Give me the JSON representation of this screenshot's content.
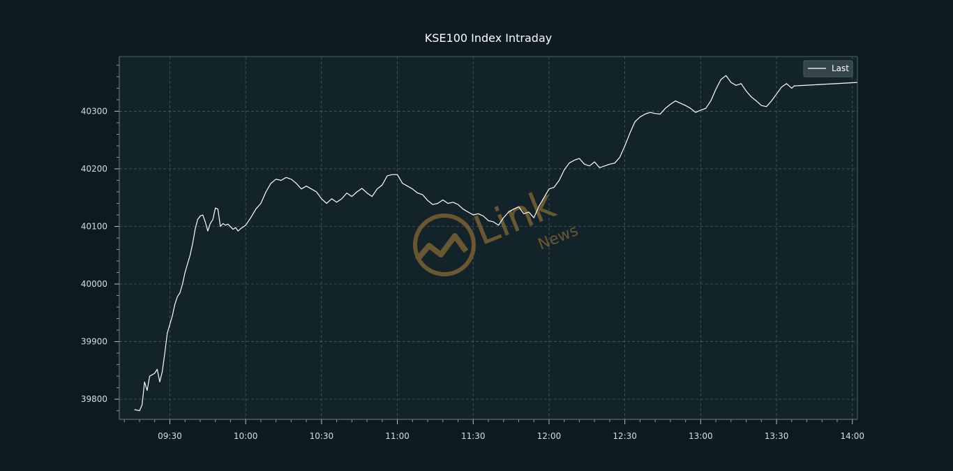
{
  "chart_data": {
    "type": "line",
    "title": "KSE100 Index Intraday",
    "xlabel": "",
    "ylabel": "",
    "x_axis": {
      "type": "time",
      "range": [
        "09:10",
        "14:02"
      ],
      "ticks": [
        "09:30",
        "10:00",
        "10:30",
        "11:00",
        "11:30",
        "12:00",
        "12:30",
        "13:00",
        "13:30",
        "14:00"
      ]
    },
    "y_axis": {
      "range": [
        39765,
        40395
      ],
      "ticks": [
        39800,
        39900,
        40000,
        40100,
        40200,
        40300
      ]
    },
    "grid": true,
    "legend": {
      "position": "top-right",
      "entries": [
        "Last"
      ]
    },
    "colors": {
      "background": "#0c1b21",
      "plot_background": "#12232a",
      "grid": "#4a5e66",
      "line": "#ffffff",
      "watermark": "#7a6130"
    },
    "series": [
      {
        "name": "Last",
        "points": [
          [
            "09:16",
            39782
          ],
          [
            "09:18",
            39780
          ],
          [
            "09:19",
            39790
          ],
          [
            "09:20",
            39830
          ],
          [
            "09:21",
            39815
          ],
          [
            "09:22",
            39840
          ],
          [
            "09:24",
            39845
          ],
          [
            "09:25",
            39852
          ],
          [
            "09:26",
            39830
          ],
          [
            "09:27",
            39848
          ],
          [
            "09:28",
            39880
          ],
          [
            "09:29",
            39915
          ],
          [
            "09:30",
            39930
          ],
          [
            "09:31",
            39945
          ],
          [
            "09:32",
            39965
          ],
          [
            "09:33",
            39978
          ],
          [
            "09:34",
            39985
          ],
          [
            "09:35",
            40000
          ],
          [
            "09:36",
            40020
          ],
          [
            "09:37",
            40035
          ],
          [
            "09:38",
            40050
          ],
          [
            "09:39",
            40070
          ],
          [
            "09:40",
            40095
          ],
          [
            "09:41",
            40112
          ],
          [
            "09:42",
            40118
          ],
          [
            "09:43",
            40120
          ],
          [
            "09:44",
            40108
          ],
          [
            "09:45",
            40092
          ],
          [
            "09:46",
            40105
          ],
          [
            "09:47",
            40112
          ],
          [
            "09:48",
            40132
          ],
          [
            "09:49",
            40130
          ],
          [
            "09:50",
            40100
          ],
          [
            "09:51",
            40105
          ],
          [
            "09:52",
            40102
          ],
          [
            "09:53",
            40104
          ],
          [
            "09:55",
            40095
          ],
          [
            "09:56",
            40098
          ],
          [
            "09:57",
            40092
          ],
          [
            "09:58",
            40096
          ],
          [
            "10:00",
            40102
          ],
          [
            "10:02",
            40115
          ],
          [
            "10:04",
            40130
          ],
          [
            "10:06",
            40140
          ],
          [
            "10:08",
            40160
          ],
          [
            "10:10",
            40175
          ],
          [
            "10:12",
            40182
          ],
          [
            "10:14",
            40180
          ],
          [
            "10:16",
            40185
          ],
          [
            "10:18",
            40182
          ],
          [
            "10:20",
            40175
          ],
          [
            "10:22",
            40165
          ],
          [
            "10:24",
            40170
          ],
          [
            "10:26",
            40165
          ],
          [
            "10:28",
            40160
          ],
          [
            "10:30",
            40148
          ],
          [
            "10:32",
            40140
          ],
          [
            "10:34",
            40148
          ],
          [
            "10:36",
            40142
          ],
          [
            "10:38",
            40148
          ],
          [
            "10:40",
            40158
          ],
          [
            "10:42",
            40152
          ],
          [
            "10:44",
            40160
          ],
          [
            "10:46",
            40166
          ],
          [
            "10:48",
            40158
          ],
          [
            "10:50",
            40152
          ],
          [
            "10:52",
            40165
          ],
          [
            "10:54",
            40172
          ],
          [
            "10:56",
            40188
          ],
          [
            "10:58",
            40190
          ],
          [
            "11:00",
            40190
          ],
          [
            "11:02",
            40175
          ],
          [
            "11:04",
            40170
          ],
          [
            "11:06",
            40165
          ],
          [
            "11:08",
            40158
          ],
          [
            "11:10",
            40155
          ],
          [
            "11:12",
            40145
          ],
          [
            "11:14",
            40138
          ],
          [
            "11:16",
            40140
          ],
          [
            "11:18",
            40146
          ],
          [
            "11:20",
            40140
          ],
          [
            "11:22",
            40142
          ],
          [
            "11:24",
            40138
          ],
          [
            "11:26",
            40130
          ],
          [
            "11:28",
            40125
          ],
          [
            "11:30",
            40120
          ],
          [
            "11:32",
            40122
          ],
          [
            "11:34",
            40118
          ],
          [
            "11:36",
            40110
          ],
          [
            "11:38",
            40108
          ],
          [
            "11:40",
            40102
          ],
          [
            "11:42",
            40115
          ],
          [
            "11:44",
            40125
          ],
          [
            "11:46",
            40130
          ],
          [
            "11:48",
            40134
          ],
          [
            "11:50",
            40122
          ],
          [
            "11:52",
            40125
          ],
          [
            "11:54",
            40115
          ],
          [
            "11:56",
            40135
          ],
          [
            "11:58",
            40150
          ],
          [
            "12:00",
            40165
          ],
          [
            "12:02",
            40168
          ],
          [
            "12:04",
            40180
          ],
          [
            "12:06",
            40198
          ],
          [
            "12:08",
            40210
          ],
          [
            "12:10",
            40215
          ],
          [
            "12:12",
            40218
          ],
          [
            "12:14",
            40208
          ],
          [
            "12:16",
            40205
          ],
          [
            "12:18",
            40212
          ],
          [
            "12:20",
            40202
          ],
          [
            "12:22",
            40205
          ],
          [
            "12:24",
            40208
          ],
          [
            "12:26",
            40210
          ],
          [
            "12:28",
            40220
          ],
          [
            "12:30",
            40240
          ],
          [
            "12:32",
            40262
          ],
          [
            "12:34",
            40282
          ],
          [
            "12:36",
            40290
          ],
          [
            "12:38",
            40295
          ],
          [
            "12:40",
            40298
          ],
          [
            "12:42",
            40296
          ],
          [
            "12:44",
            40295
          ],
          [
            "12:46",
            40305
          ],
          [
            "12:48",
            40312
          ],
          [
            "12:50",
            40318
          ],
          [
            "12:52",
            40314
          ],
          [
            "12:54",
            40310
          ],
          [
            "12:56",
            40305
          ],
          [
            "12:58",
            40298
          ],
          [
            "13:00",
            40302
          ],
          [
            "13:02",
            40305
          ],
          [
            "13:04",
            40318
          ],
          [
            "13:06",
            40338
          ],
          [
            "13:08",
            40355
          ],
          [
            "13:10",
            40362
          ],
          [
            "13:12",
            40350
          ],
          [
            "13:14",
            40345
          ],
          [
            "13:16",
            40348
          ],
          [
            "13:18",
            40335
          ],
          [
            "13:20",
            40325
          ],
          [
            "13:22",
            40318
          ],
          [
            "13:24",
            40310
          ],
          [
            "13:26",
            40308
          ],
          [
            "13:28",
            40318
          ],
          [
            "13:30",
            40330
          ],
          [
            "13:32",
            40342
          ],
          [
            "13:34",
            40348
          ],
          [
            "13:36",
            40340
          ],
          [
            "13:37",
            40344
          ],
          [
            "14:02",
            40350
          ]
        ]
      }
    ]
  },
  "watermark": {
    "brand": "Link",
    "sub": "News"
  }
}
